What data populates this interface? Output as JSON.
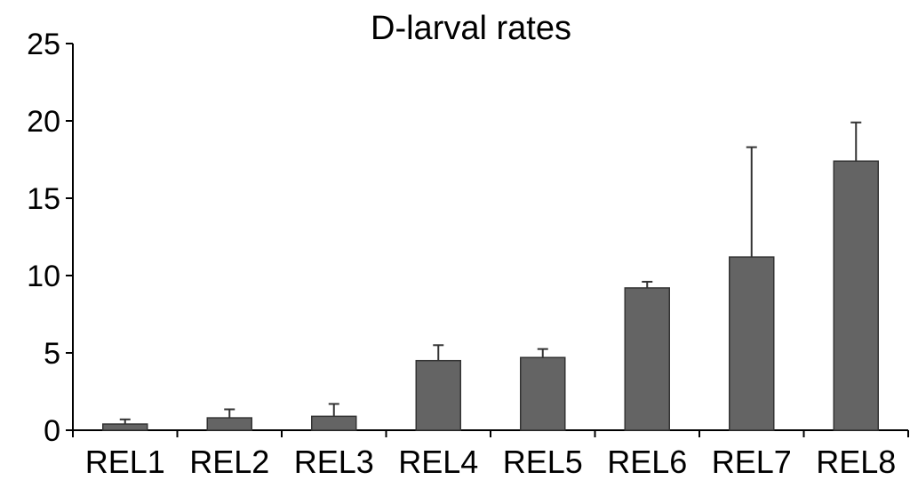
{
  "chart_data": {
    "type": "bar",
    "title": "D-larval rates",
    "xlabel": "",
    "ylabel": "",
    "categories": [
      "REL1",
      "REL2",
      "REL3",
      "REL4",
      "REL5",
      "REL6",
      "REL7",
      "REL8"
    ],
    "values": [
      0.4,
      0.8,
      0.9,
      4.5,
      4.7,
      9.2,
      11.2,
      17.4
    ],
    "error_plus": [
      0.3,
      0.55,
      0.8,
      1.0,
      0.55,
      0.4,
      7.1,
      2.5
    ],
    "ylim": [
      0,
      25
    ],
    "yticks": [
      0,
      5,
      10,
      15,
      20,
      25
    ],
    "grid": false,
    "legend": "none",
    "colors": {
      "bar": "#646464",
      "bar_edge": "#333333",
      "axis": "#000000"
    }
  }
}
